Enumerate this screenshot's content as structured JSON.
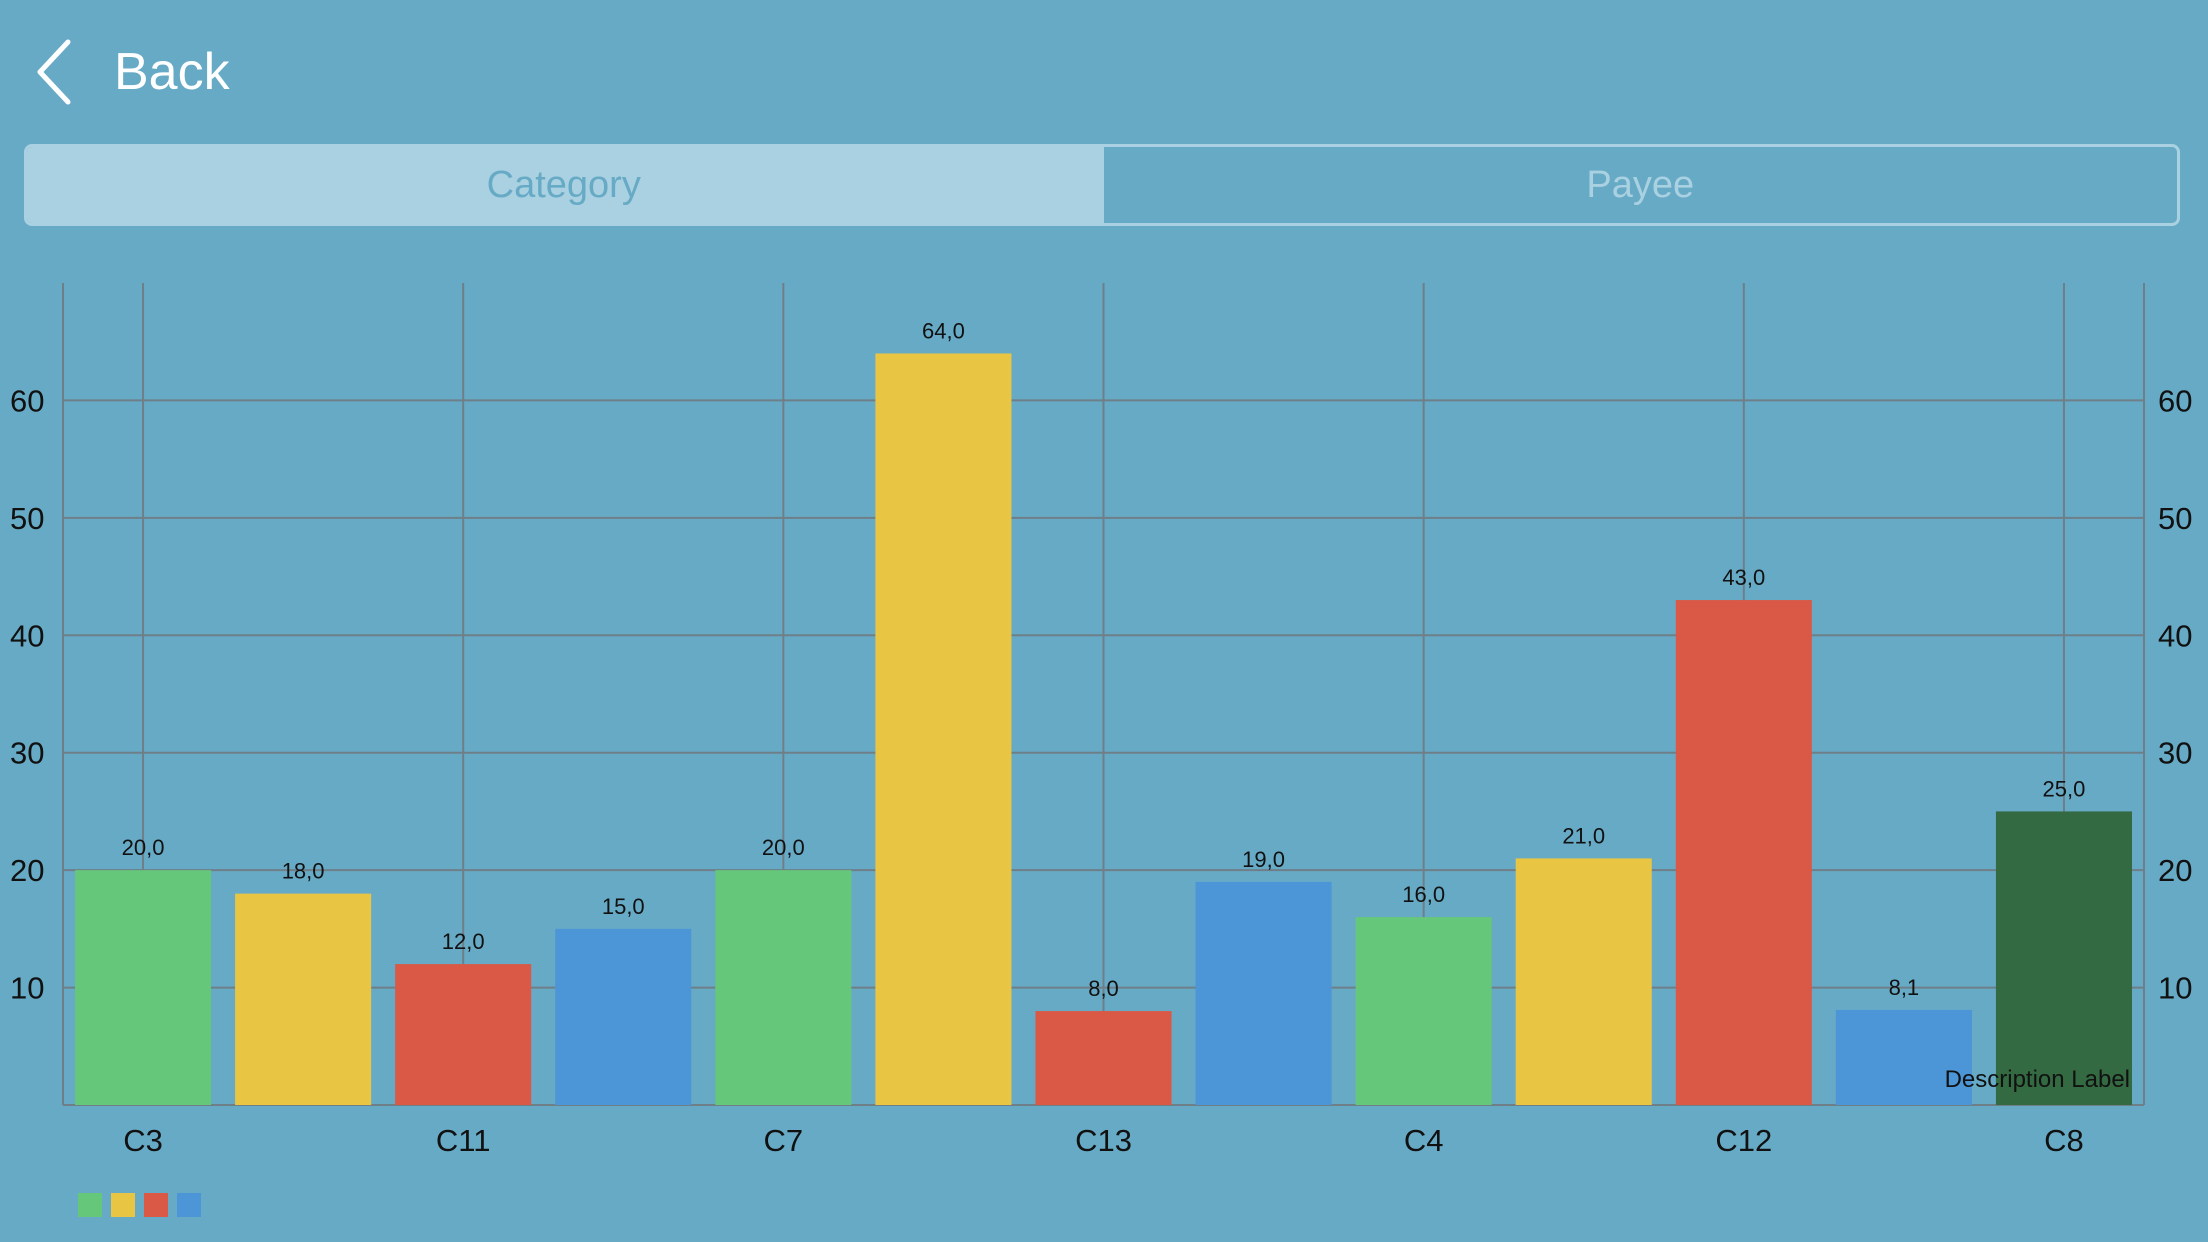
{
  "nav": {
    "back_label": "Back",
    "back_icon": "chevron-left-icon"
  },
  "segments": [
    {
      "label": "Category",
      "selected": true
    },
    {
      "label": "Payee",
      "selected": false
    }
  ],
  "chart_data": {
    "type": "bar",
    "categories": [
      "C3",
      "",
      "C11",
      "",
      "C7",
      "",
      "C13",
      "",
      "C4",
      "",
      "C12",
      "",
      "C8"
    ],
    "values": [
      20.0,
      18.0,
      12.0,
      15.0,
      20.0,
      64.0,
      8.0,
      19.0,
      16.0,
      21.0,
      43.0,
      8.1,
      25.0
    ],
    "value_labels": [
      "20,0",
      "18,0",
      "12,0",
      "15,0",
      "20,0",
      "64,0",
      "8,0",
      "19,0",
      "16,0",
      "21,0",
      "43,0",
      "8,1",
      "25,0"
    ],
    "bar_colors": [
      "#65c779",
      "#e8c542",
      "#d95946",
      "#4c95d6",
      "#65c779",
      "#e8c542",
      "#d95946",
      "#4c95d6",
      "#65c779",
      "#e8c542",
      "#d95946",
      "#4c95d6",
      "#336a41"
    ],
    "y_ticks": [
      10,
      20,
      30,
      40,
      50,
      60
    ],
    "ylim": [
      0,
      70
    ],
    "grid": true,
    "title": "",
    "xlabel": "",
    "ylabel": "",
    "description": "Description Label",
    "legend_colors": [
      "#65c779",
      "#e8c542",
      "#d95946",
      "#4c95d6"
    ]
  }
}
